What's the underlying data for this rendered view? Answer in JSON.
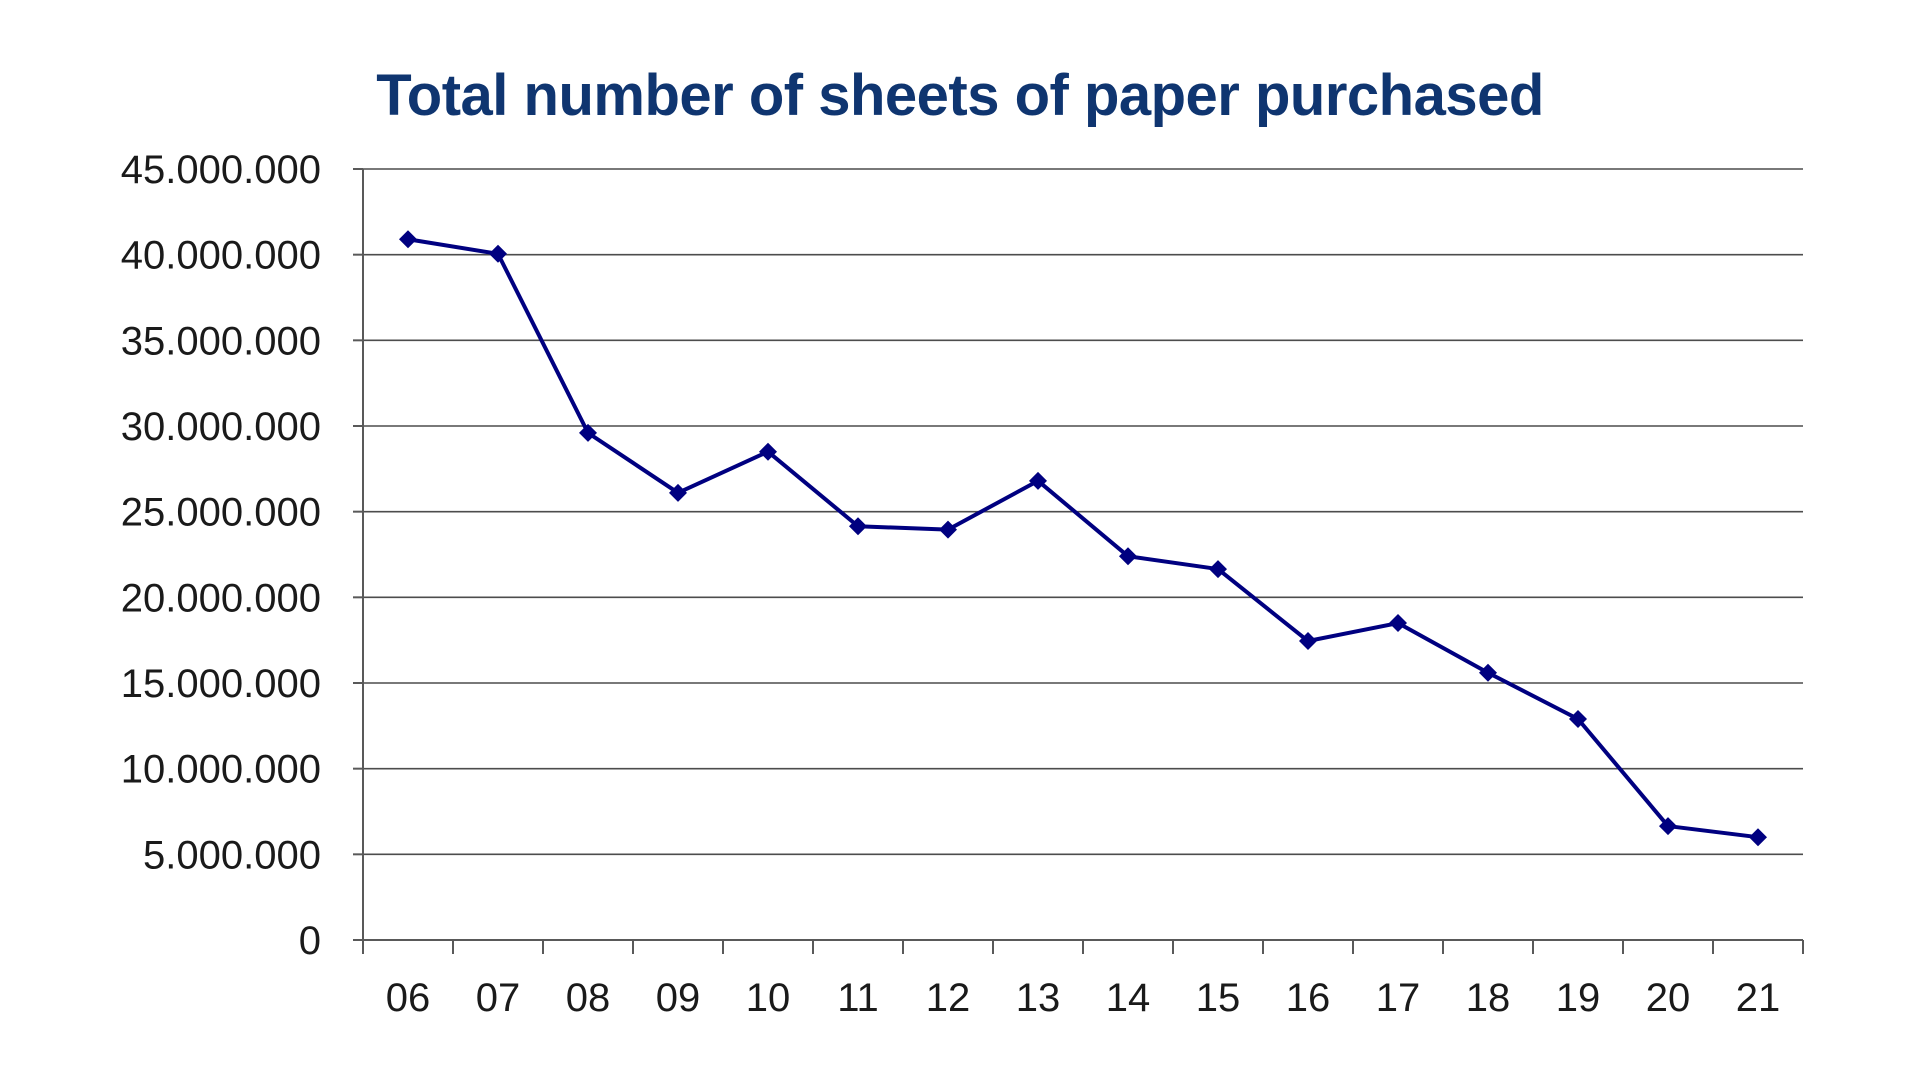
{
  "chart_data": {
    "type": "line",
    "title": "Total number of sheets of paper purchased",
    "xlabel": "",
    "ylabel": "",
    "categories": [
      "06",
      "07",
      "08",
      "09",
      "10",
      "11",
      "12",
      "13",
      "14",
      "15",
      "16",
      "17",
      "18",
      "19",
      "20",
      "21"
    ],
    "series": [
      {
        "values": [
          40900000,
          40050000,
          29600000,
          26100000,
          28500000,
          24150000,
          23950000,
          26800000,
          22400000,
          21650000,
          17450000,
          18500000,
          15600000,
          12900000,
          6650000,
          6000000
        ],
        "color": "#000080",
        "marker": "diamond"
      }
    ],
    "ylim": [
      0,
      45000000
    ],
    "yticks": [
      0,
      5000000,
      10000000,
      15000000,
      20000000,
      25000000,
      30000000,
      35000000,
      40000000,
      45000000
    ],
    "ytick_labels": [
      "0",
      "5.000.000",
      "10.000.000",
      "15.000.000",
      "20.000.000",
      "25.000.000",
      "30.000.000",
      "35.000.000",
      "40.000.000",
      "45.000.000"
    ],
    "grid": true,
    "legend": "none"
  },
  "colors": {
    "title": "#0f3570",
    "gridline": "#4d4d4d",
    "axis": "#595959",
    "series": "#000080"
  }
}
